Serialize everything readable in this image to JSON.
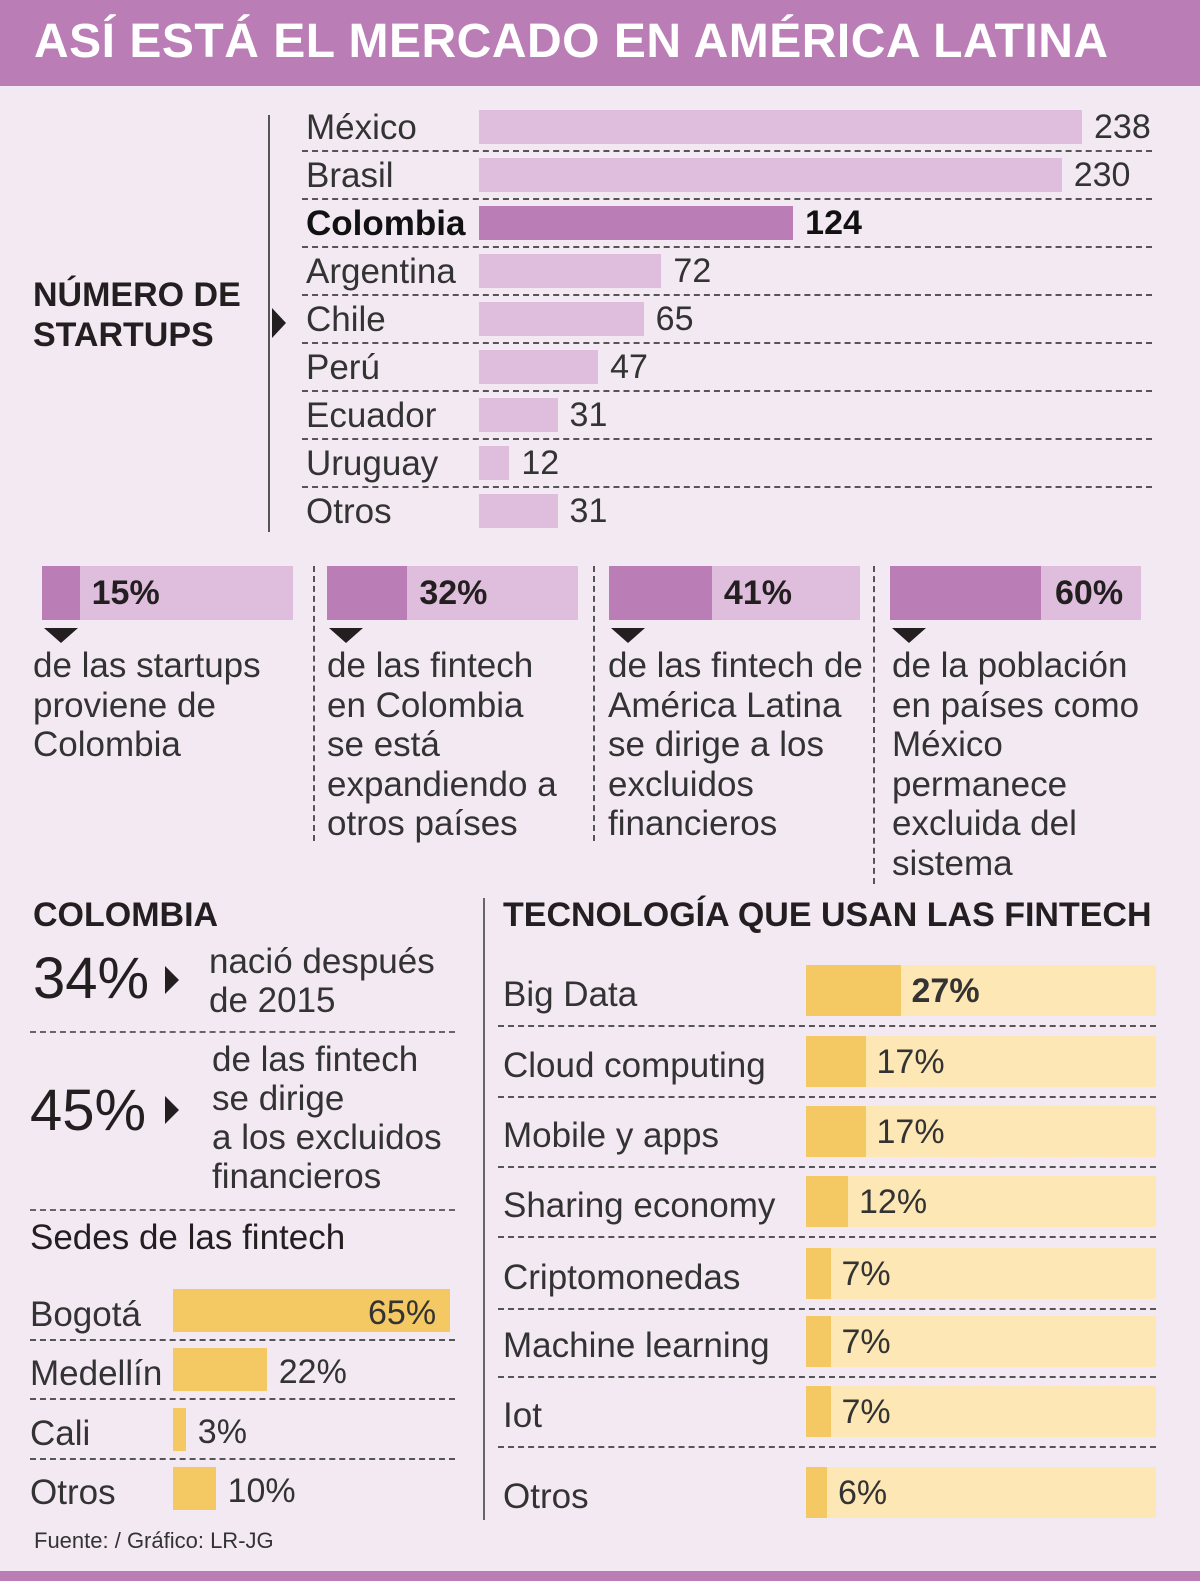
{
  "title": "ASÍ ESTÁ EL MERCADO EN AMÉRICA LATINA",
  "colors": {
    "purple": "#bb7db5",
    "light_purple": "#dfbddc",
    "yellow": "#f4c863",
    "light_yellow": "#fde7b4",
    "background": "#f3e9f3"
  },
  "startups": {
    "title_line1": "NÚMERO DE",
    "title_line2": "STARTUPS",
    "highlight": "Colombia"
  },
  "stats": [
    {
      "pct_value": 15,
      "pct_label": "15%",
      "lines": [
        "de las startups",
        "proviene de",
        "Colombia"
      ]
    },
    {
      "pct_value": 32,
      "pct_label": "32%",
      "lines": [
        "de las fintech",
        "en Colombia",
        "se está",
        "expandiendo a",
        "otros países"
      ]
    },
    {
      "pct_value": 41,
      "pct_label": "41%",
      "lines": [
        "de las fintech de",
        "América Latina",
        "se dirige a los",
        "excluidos",
        "financieros"
      ]
    },
    {
      "pct_value": 60,
      "pct_label": "60%",
      "lines": [
        "de la población",
        "en países como",
        "México",
        "permanece",
        "excluida del",
        "sistema"
      ]
    }
  ],
  "colombia": {
    "title": "COLOMBIA",
    "fact1": {
      "pct": "34%",
      "lines": [
        "nació después",
        "de 2015"
      ]
    },
    "fact2": {
      "pct": "45%",
      "lines": [
        "de las fintech",
        "se dirige",
        "a los excluidos",
        "financieros"
      ]
    }
  },
  "sedes": {
    "title": "Sedes de las fintech"
  },
  "tech": {
    "title": "TECNOLOGÍA QUE USAN LAS FINTECH"
  },
  "source": "Fuente: / Gráfico: LR-JG",
  "chart_data": [
    {
      "type": "bar",
      "title": "NÚMERO DE STARTUPS",
      "categories": [
        "México",
        "Brasil",
        "Colombia",
        "Argentina",
        "Chile",
        "Perú",
        "Ecuador",
        "Uruguay",
        "Otros"
      ],
      "values": [
        238,
        230,
        124,
        72,
        65,
        47,
        31,
        12,
        31
      ],
      "value_labels": [
        "238",
        "230",
        "124",
        "72",
        "65",
        "47",
        "31",
        "12",
        "31"
      ]
    },
    {
      "type": "bar",
      "title": "Sedes de las fintech",
      "categories": [
        "Bogotá",
        "Medellín",
        "Cali",
        "Otros"
      ],
      "values": [
        65,
        22,
        3,
        10
      ],
      "value_labels": [
        "65%",
        "22%",
        "3%",
        "10%"
      ]
    },
    {
      "type": "bar",
      "title": "TECNOLOGÍA QUE USAN LAS FINTECH",
      "categories": [
        "Big Data",
        "Cloud computing",
        "Mobile y apps",
        "Sharing economy",
        "Criptomonedas",
        "Machine learning",
        "Iot",
        "Otros"
      ],
      "values": [
        27,
        17,
        17,
        12,
        7,
        7,
        7,
        6
      ],
      "value_labels": [
        "27%",
        "17%",
        "17%",
        "12%",
        "7%",
        "7%",
        "7%",
        "6%"
      ]
    }
  ]
}
